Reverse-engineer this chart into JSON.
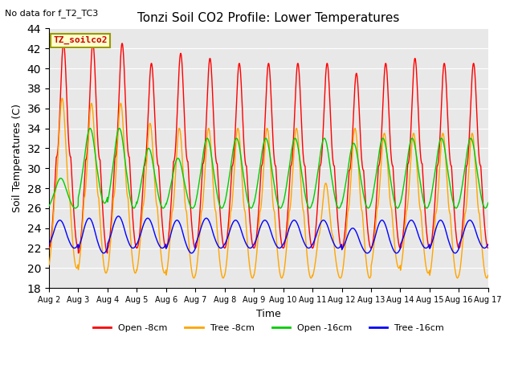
{
  "title": "Tonzi Soil CO2 Profile: Lower Temperatures",
  "no_data_text": "No data for f_T2_TC3",
  "legend_box_text": "TZ_soilco2",
  "ylabel": "Soil Temperatures (C)",
  "xlabel": "Time",
  "ylim": [
    18,
    44
  ],
  "yticks": [
    18,
    20,
    22,
    24,
    26,
    28,
    30,
    32,
    34,
    36,
    38,
    40,
    42,
    44
  ],
  "colors": {
    "open_8cm": "#ff0000",
    "tree_8cm": "#ffa500",
    "open_16cm": "#00cc00",
    "tree_16cm": "#0000ff"
  },
  "series_labels": [
    "Open -8cm",
    "Tree -8cm",
    "Open -16cm",
    "Tree -16cm"
  ],
  "background_color": "#e8e8e8",
  "legend_box_color": "#ffffcc",
  "legend_box_edge": "#999900",
  "num_days": 15,
  "start_day": 2,
  "points_per_day": 144,
  "figsize": [
    6.4,
    4.8
  ],
  "dpi": 100
}
